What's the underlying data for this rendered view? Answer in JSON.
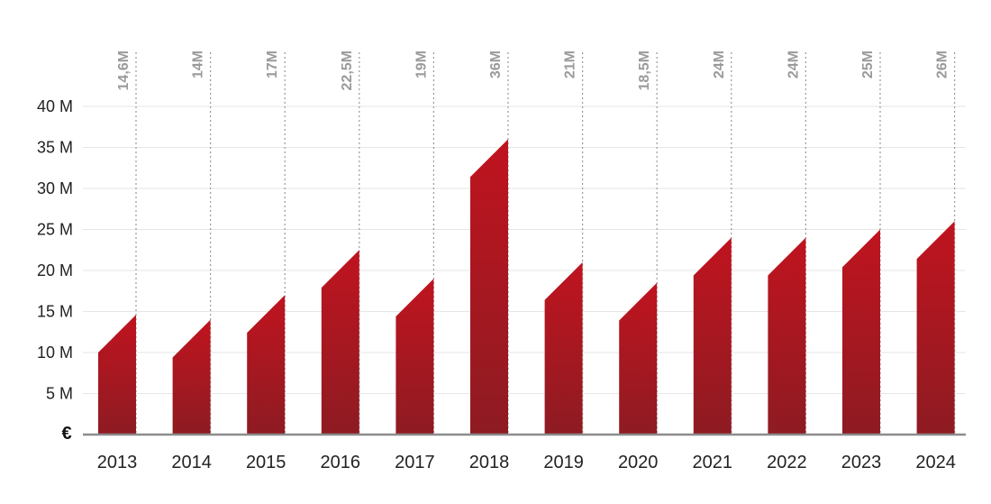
{
  "chart_data": {
    "type": "bar",
    "categories": [
      "2013",
      "2014",
      "2015",
      "2016",
      "2017",
      "2018",
      "2019",
      "2020",
      "2021",
      "2022",
      "2023",
      "2024"
    ],
    "values": [
      14.6,
      14,
      17,
      22.5,
      19,
      36,
      21,
      18.5,
      24,
      24,
      25,
      26
    ],
    "data_labels": [
      "14,6M",
      "14M",
      "17M",
      "22,5M",
      "19M",
      "36M",
      "21M",
      "18,5M",
      "24M",
      "24M",
      "25M",
      "26M"
    ],
    "y_tick_labels": [
      "5 M",
      "10 M",
      "15 M",
      "20 M",
      "25 M",
      "30 M",
      "35 M",
      "40 M"
    ],
    "y_ticks": [
      5,
      10,
      15,
      20,
      25,
      30,
      35,
      40
    ],
    "unit_label": "€",
    "ylim": [
      0,
      40
    ],
    "grid": true,
    "colors": {
      "bar_top": "#c0141f",
      "bar_bottom": "#8e1b22",
      "label": "#9a9a9a"
    }
  }
}
